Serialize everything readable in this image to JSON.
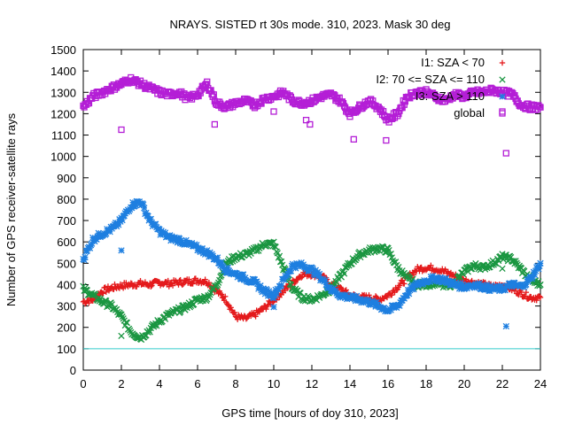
{
  "chart_data": {
    "type": "scatter",
    "title": "NRAYS. SISTED rt 30s mode. 310, 2023. Mask 30 deg",
    "xlabel": "GPS time [hours of doy 310, 2023]",
    "ylabel": "Number of GPS receiver-satellite rays",
    "xlim": [
      0,
      24
    ],
    "ylim": [
      0,
      1500
    ],
    "xticks": [
      0,
      2,
      4,
      6,
      8,
      10,
      12,
      14,
      16,
      18,
      20,
      22,
      24
    ],
    "yticks": [
      0,
      100,
      200,
      300,
      400,
      500,
      600,
      700,
      800,
      900,
      1000,
      1100,
      1200,
      1300,
      1400,
      1500
    ],
    "grid": false,
    "legend_position": "top-right",
    "threshold_line": {
      "y": 100,
      "color": "#33cccc"
    },
    "series": [
      {
        "name": "I1: SZA < 70",
        "marker": "+",
        "color": "#e41a1c",
        "x": [
          0,
          0.5,
          1,
          1.5,
          2,
          2.5,
          3,
          3.5,
          4,
          4.5,
          5,
          5.5,
          6,
          6.5,
          7,
          7.5,
          8,
          8.5,
          9,
          9.5,
          10,
          10.5,
          11,
          11.5,
          12,
          12.5,
          13,
          13.5,
          14,
          14.5,
          15,
          15.5,
          16,
          16.5,
          17,
          17.5,
          18,
          18.5,
          19,
          19.5,
          20,
          20.5,
          21,
          21.5,
          22,
          22.5,
          23,
          23.5,
          24
        ],
        "y": [
          320,
          330,
          370,
          385,
          395,
          400,
          405,
          400,
          410,
          405,
          410,
          415,
          420,
          415,
          370,
          330,
          250,
          240,
          260,
          290,
          330,
          370,
          410,
          450,
          450,
          440,
          400,
          380,
          350,
          340,
          340,
          330,
          350,
          390,
          430,
          470,
          480,
          475,
          460,
          440,
          420,
          410,
          400,
          390,
          400,
          380,
          360,
          340,
          340
        ]
      },
      {
        "name": "I2: 70 <= SZA <= 110",
        "marker": "x",
        "color": "#1a9641",
        "x": [
          0,
          0.5,
          1,
          1.5,
          2,
          2.5,
          3,
          3.5,
          4,
          4.5,
          5,
          5.5,
          6,
          6.5,
          7,
          7.5,
          8,
          8.5,
          9,
          9.5,
          10,
          10.5,
          11,
          11.5,
          12,
          12.5,
          13,
          13.5,
          14,
          14.5,
          15,
          15.5,
          16,
          16.5,
          17,
          17.5,
          18,
          18.5,
          19,
          19.5,
          20,
          20.5,
          21,
          21.5,
          22,
          22.5,
          23,
          23.5,
          24
        ],
        "y": [
          380,
          350,
          320,
          300,
          250,
          180,
          150,
          190,
          230,
          260,
          280,
          300,
          330,
          340,
          400,
          500,
          530,
          540,
          560,
          590,
          590,
          480,
          380,
          340,
          330,
          350,
          380,
          440,
          500,
          540,
          560,
          570,
          560,
          480,
          430,
          400,
          400,
          410,
          390,
          410,
          460,
          490,
          480,
          500,
          530,
          520,
          470,
          420,
          400
        ]
      },
      {
        "name": "I3: SZA > 110",
        "marker": "*",
        "color": "#1e7fe0",
        "x": [
          0,
          0.5,
          1,
          1.5,
          2,
          2.5,
          3,
          3.5,
          4,
          4.5,
          5,
          5.5,
          6,
          6.5,
          7,
          7.5,
          8,
          8.5,
          9,
          9.5,
          10,
          10.5,
          11,
          11.5,
          12,
          12.5,
          13,
          13.5,
          14,
          14.5,
          15,
          15.5,
          16,
          16.5,
          17,
          17.5,
          18,
          18.5,
          19,
          19.5,
          20,
          20.5,
          21,
          21.5,
          22,
          22.5,
          23,
          23.5,
          24
        ],
        "y": [
          520,
          610,
          640,
          660,
          700,
          770,
          790,
          700,
          650,
          620,
          610,
          590,
          570,
          550,
          520,
          470,
          450,
          430,
          410,
          370,
          350,
          420,
          490,
          490,
          470,
          430,
          380,
          350,
          340,
          330,
          320,
          300,
          280,
          300,
          360,
          400,
          420,
          430,
          420,
          400,
          390,
          400,
          390,
          380,
          380,
          400,
          390,
          430,
          500
        ]
      },
      {
        "name": "global",
        "marker": "square",
        "color": "#b41ed6",
        "x": [
          0,
          0.5,
          1,
          1.5,
          2,
          2.5,
          3,
          3.5,
          4,
          4.5,
          5,
          5.5,
          6,
          6.5,
          7,
          7.5,
          8,
          8.5,
          9,
          9.5,
          10,
          10.5,
          11,
          11.5,
          12,
          12.5,
          13,
          13.5,
          14,
          14.5,
          15,
          15.5,
          16,
          16.5,
          17,
          17.5,
          18,
          18.5,
          19,
          19.5,
          20,
          20.5,
          21,
          21.5,
          22,
          22.5,
          23,
          23.5,
          24
        ],
        "y": [
          1230,
          1280,
          1300,
          1320,
          1340,
          1360,
          1340,
          1320,
          1300,
          1290,
          1300,
          1270,
          1290,
          1340,
          1250,
          1230,
          1250,
          1260,
          1240,
          1270,
          1280,
          1300,
          1260,
          1250,
          1260,
          1280,
          1290,
          1260,
          1200,
          1230,
          1260,
          1230,
          1170,
          1200,
          1280,
          1300,
          1300,
          1280,
          1260,
          1290,
          1280,
          1300,
          1300,
          1310,
          1300,
          1290,
          1240,
          1230,
          1230
        ]
      }
    ],
    "outliers": [
      {
        "series": "global",
        "x": 2.0,
        "y": 1125
      },
      {
        "series": "global",
        "x": 6.9,
        "y": 1150
      },
      {
        "series": "global",
        "x": 10.0,
        "y": 1210
      },
      {
        "series": "global",
        "x": 11.7,
        "y": 1170
      },
      {
        "series": "global",
        "x": 11.9,
        "y": 1150
      },
      {
        "series": "global",
        "x": 14.2,
        "y": 1080
      },
      {
        "series": "global",
        "x": 15.9,
        "y": 1075
      },
      {
        "series": "global",
        "x": 22.2,
        "y": 1015
      },
      {
        "series": "global",
        "x": 22.0,
        "y": 1210
      },
      {
        "series": "I3: SZA > 110",
        "x": 2.0,
        "y": 560
      },
      {
        "series": "I3: SZA > 110",
        "x": 10.0,
        "y": 295
      },
      {
        "series": "I3: SZA > 110",
        "x": 22.2,
        "y": 205
      },
      {
        "series": "I2: 70 <= SZA <= 110",
        "x": 2.0,
        "y": 160
      },
      {
        "series": "I2: 70 <= SZA <= 110",
        "x": 22.0,
        "y": 475
      }
    ]
  }
}
